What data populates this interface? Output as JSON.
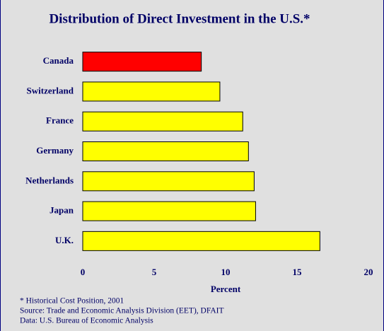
{
  "chart_data": {
    "type": "bar",
    "orientation": "horizontal",
    "title": "Distribution of Direct Investment in the U.S.*",
    "categories": [
      "Canada",
      "Switzerland",
      "France",
      "Germany",
      "Netherlands",
      "Japan",
      "U.K."
    ],
    "values": [
      8.3,
      9.6,
      11.2,
      11.6,
      12.0,
      12.1,
      16.6
    ],
    "colors": [
      "#ff0000",
      "#ffff00",
      "#ffff00",
      "#ffff00",
      "#ffff00",
      "#ffff00",
      "#ffff00"
    ],
    "xlabel": "Percent",
    "xlim": [
      0,
      20
    ],
    "xticks": [
      0,
      5,
      10,
      15,
      20
    ],
    "grid": false,
    "notes": [
      "* Historical Cost Position, 2001",
      "Source: Trade and Economic Analysis Division (EET), DFAIT",
      "Data: U.S. Bureau of Economic Analysis"
    ]
  }
}
